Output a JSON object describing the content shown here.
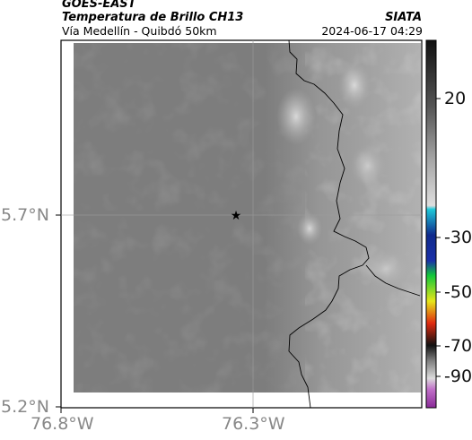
{
  "header": {
    "satellite": "GOES-EAST",
    "product": "Temperatura de Brillo CH13",
    "route": "Vía Medellín - Quibdó 50km",
    "organization": "SIATA",
    "timestamp": "2024-06-17 04:29"
  },
  "map": {
    "lat_ticks": [
      "5.7°N",
      "5.2°N"
    ],
    "lon_ticks": [
      "76.8°W",
      "76.3°W"
    ],
    "marker": "star"
  },
  "colorbar": {
    "labels": [
      "20",
      "-30",
      "-50",
      "-70",
      "-90"
    ],
    "colors": [
      "#202020",
      "#8a8a8a",
      "#d8d8d8",
      "#1ec8d8",
      "#102a8c",
      "#12c83a",
      "#e6e61a",
      "#e02a10",
      "#111111",
      "#b0b0b0",
      "#9a3aa8"
    ]
  }
}
